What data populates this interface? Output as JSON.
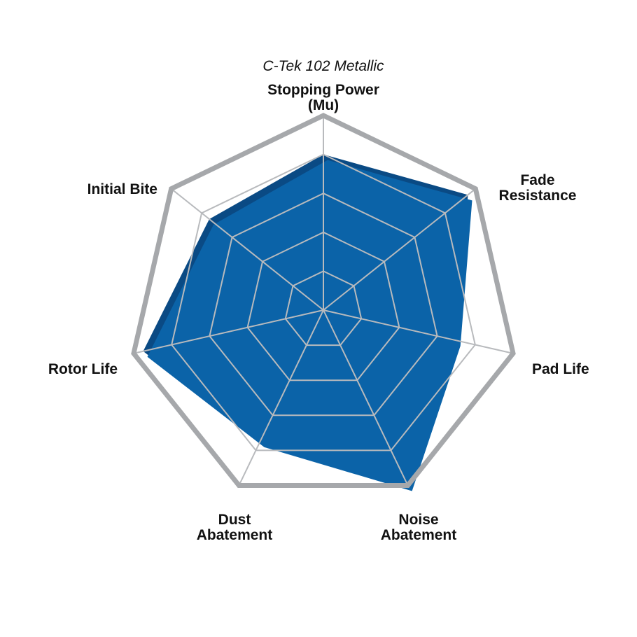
{
  "chart_data": {
    "type": "radar",
    "title": "C-Tek 102 Metallic",
    "axes": [
      {
        "label": [
          "Stopping Power",
          "(Mu)"
        ],
        "value": 4
      },
      {
        "label": [
          "Fade",
          "Resistance"
        ],
        "value": 4.75
      },
      {
        "label": [
          "Pad Life"
        ],
        "value": 3.5
      },
      {
        "label": [
          "Noise",
          "Abatement"
        ],
        "value": 5
      },
      {
        "label": [
          "Dust",
          "Abatement"
        ],
        "value": 3.75
      },
      {
        "label": [
          "Rotor Life"
        ],
        "value": 4.75
      },
      {
        "label": [
          "Initial Bite"
        ],
        "value": 3.75
      }
    ],
    "range": [
      0,
      5
    ],
    "grid_levels": 5,
    "colors": {
      "fill": "#0b63a8",
      "shadow": "#0a4a84",
      "outer": "#a6a8ab",
      "grid": "#b8babd"
    }
  }
}
